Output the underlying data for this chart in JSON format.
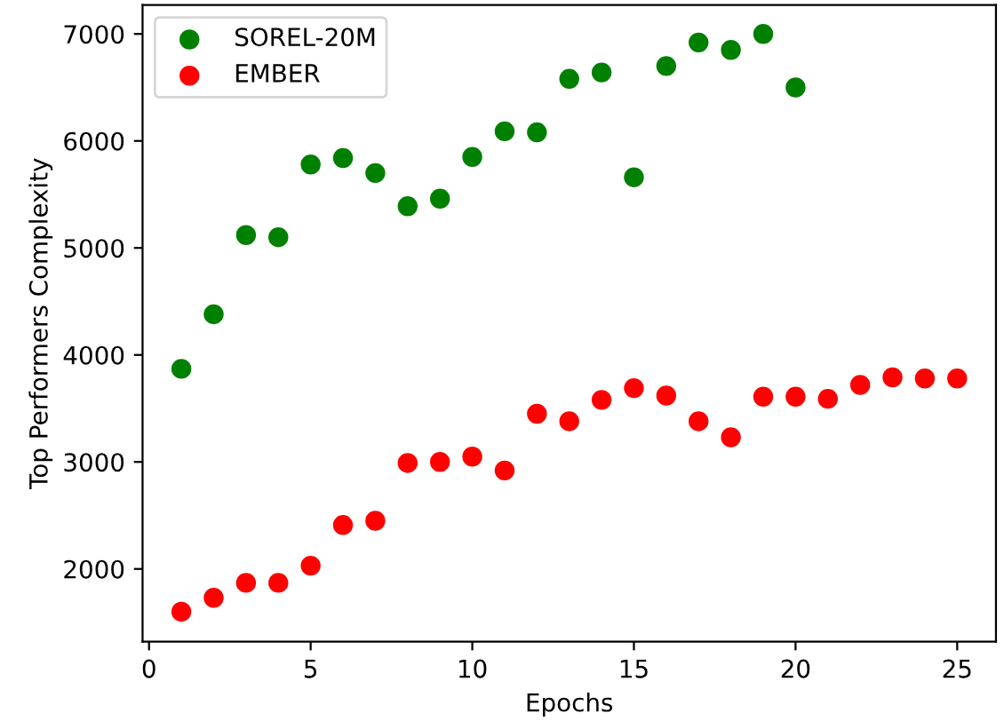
{
  "chart_data": {
    "type": "scatter",
    "xlabel": "Epochs",
    "ylabel": "Top Performers Complexity",
    "series": [
      {
        "name": "SOREL-20M",
        "color": "#008000",
        "x": [
          1,
          2,
          3,
          4,
          5,
          6,
          7,
          8,
          9,
          10,
          11,
          12,
          13,
          14,
          15,
          16,
          17,
          18,
          19,
          20
        ],
        "values": [
          3870,
          4380,
          5120,
          5100,
          5780,
          5840,
          5700,
          5390,
          5460,
          5850,
          6090,
          6080,
          6580,
          6640,
          5660,
          6700,
          6920,
          6850,
          7000,
          6500
        ]
      },
      {
        "name": "EMBER",
        "color": "#ff0000",
        "x": [
          1,
          2,
          3,
          4,
          5,
          6,
          7,
          8,
          9,
          10,
          11,
          12,
          13,
          14,
          15,
          16,
          17,
          18,
          19,
          20,
          21,
          22,
          23,
          24,
          25
        ],
        "values": [
          1600,
          1730,
          1870,
          1870,
          2030,
          2410,
          2450,
          2990,
          3000,
          3050,
          2920,
          3450,
          3380,
          3580,
          3690,
          3620,
          3380,
          3230,
          3610,
          3610,
          3590,
          3720,
          3790,
          3780,
          3780
        ]
      }
    ],
    "xlim": [
      -0.2,
      26.2
    ],
    "xticks": [
      0,
      5,
      10,
      15,
      20,
      25
    ],
    "ylim": [
      1320,
      7270
    ],
    "yticks": [
      2000,
      3000,
      4000,
      5000,
      6000,
      7000
    ],
    "marker": "circle",
    "grid": false,
    "legend": "top left"
  }
}
